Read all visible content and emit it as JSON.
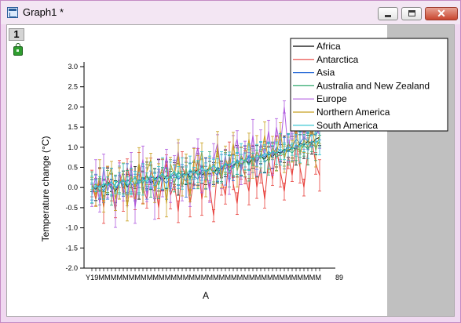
{
  "window": {
    "title": "Graph1 *"
  },
  "layer": {
    "label": "1"
  },
  "chart_data": {
    "type": "line",
    "title": "",
    "xlabel": "A",
    "ylabel": "Temperature change (°C)",
    "ylim": [
      -2.0,
      3.0
    ],
    "yticks": [
      "-2.0",
      "-1.5",
      "-1.0",
      "-0.5",
      "0.0",
      "0.5",
      "1.0",
      "1.5",
      "2.0",
      "2.5",
      "3.0"
    ],
    "xtick_first": "Y19",
    "xtick_last": "89",
    "n_points": 59,
    "error_bars": true,
    "legend_position": "top-right",
    "series": [
      {
        "name": "Africa",
        "color": "#000000",
        "values": [
          0.05,
          -0.05,
          0.1,
          0.0,
          0.15,
          0.05,
          -0.1,
          0.1,
          0.2,
          0.0,
          0.15,
          0.25,
          0.1,
          0.2,
          0.3,
          0.1,
          0.2,
          0.3,
          0.15,
          0.3,
          0.25,
          0.35,
          0.2,
          0.3,
          0.4,
          0.25,
          0.35,
          0.45,
          0.3,
          0.4,
          0.5,
          0.35,
          0.5,
          0.45,
          0.6,
          0.5,
          0.55,
          0.65,
          0.5,
          0.7,
          0.6,
          0.75,
          0.65,
          0.8,
          0.7,
          0.85,
          0.75,
          0.9,
          0.85,
          0.95,
          0.9,
          1.0,
          0.95,
          1.1,
          1.05,
          1.15,
          1.1,
          1.2,
          1.25
        ]
      },
      {
        "name": "Antarctica",
        "color": "#e8413c",
        "values": [
          0.1,
          -0.3,
          0.2,
          -0.5,
          0.3,
          0.0,
          -0.6,
          0.4,
          -0.2,
          0.5,
          0.1,
          -0.4,
          0.6,
          0.0,
          -0.3,
          0.4,
          0.2,
          -0.5,
          0.3,
          0.6,
          -0.2,
          0.1,
          -0.6,
          0.5,
          0.3,
          -0.4,
          0.2,
          0.7,
          -0.3,
          0.4,
          0.0,
          -0.7,
          0.5,
          0.2,
          -0.2,
          0.8,
          0.1,
          -0.4,
          0.6,
          0.3,
          -0.1,
          0.9,
          0.0,
          0.5,
          -0.3,
          0.7,
          0.2,
          1.0,
          0.4,
          -0.1,
          0.8,
          0.3,
          1.1,
          0.5,
          0.0,
          0.9,
          1.2,
          0.6,
          0.3
        ]
      },
      {
        "name": "Asia",
        "color": "#2e6fd8",
        "values": [
          -0.1,
          0.0,
          0.05,
          -0.1,
          0.1,
          0.0,
          -0.05,
          0.15,
          0.05,
          0.2,
          0.1,
          0.0,
          0.15,
          0.25,
          0.1,
          0.2,
          0.05,
          0.3,
          0.2,
          0.1,
          0.25,
          0.35,
          0.2,
          0.3,
          0.15,
          0.4,
          0.3,
          0.2,
          0.45,
          0.35,
          0.5,
          0.4,
          0.3,
          0.55,
          0.45,
          0.6,
          0.5,
          0.7,
          0.55,
          0.65,
          0.8,
          0.7,
          0.6,
          0.85,
          0.75,
          0.9,
          0.8,
          1.0,
          0.9,
          0.85,
          1.1,
          1.0,
          1.2,
          1.1,
          1.25,
          1.15,
          1.35,
          1.3,
          1.45
        ]
      },
      {
        "name": "Australia and New Zealand",
        "color": "#2fa86d",
        "values": [
          0.0,
          0.1,
          -0.1,
          0.05,
          0.15,
          -0.05,
          0.1,
          0.2,
          0.0,
          0.15,
          0.25,
          0.05,
          0.2,
          0.1,
          0.3,
          0.15,
          0.25,
          0.05,
          0.35,
          0.2,
          0.3,
          0.1,
          0.4,
          0.25,
          0.35,
          0.2,
          0.45,
          0.3,
          0.4,
          0.25,
          0.5,
          0.35,
          0.45,
          0.3,
          0.6,
          0.4,
          0.5,
          0.65,
          0.45,
          0.7,
          0.55,
          0.75,
          0.6,
          0.8,
          0.65,
          0.7,
          0.9,
          0.75,
          0.85,
          0.8,
          0.95,
          0.85,
          1.0,
          0.9,
          1.05,
          0.95,
          1.1,
          1.0,
          1.15
        ]
      },
      {
        "name": "Europe",
        "color": "#b05ce0",
        "values": [
          -0.2,
          0.3,
          -0.4,
          0.5,
          -0.1,
          0.2,
          -0.6,
          0.4,
          0.0,
          -0.3,
          0.6,
          -0.5,
          0.2,
          0.7,
          -0.2,
          0.3,
          -0.4,
          0.5,
          0.1,
          0.8,
          -0.1,
          0.4,
          0.9,
          0.0,
          0.5,
          -0.2,
          0.6,
          1.0,
          0.2,
          0.4,
          -0.1,
          0.7,
          1.1,
          0.3,
          0.8,
          0.1,
          0.9,
          1.2,
          0.4,
          1.0,
          0.6,
          1.3,
          0.5,
          1.1,
          0.8,
          1.4,
          0.7,
          1.5,
          1.0,
          2.0,
          0.9,
          1.6,
          1.2,
          1.8,
          1.1,
          1.7,
          1.4,
          1.5,
          1.3
        ]
      },
      {
        "name": "Northern America",
        "color": "#c8a020",
        "values": [
          0.1,
          -0.2,
          0.3,
          -0.4,
          0.2,
          0.5,
          -0.3,
          0.1,
          0.4,
          -0.5,
          0.3,
          0.0,
          0.6,
          -0.2,
          0.4,
          0.7,
          -0.1,
          0.2,
          0.5,
          -0.4,
          0.6,
          0.3,
          0.8,
          0.0,
          0.5,
          -0.2,
          0.7,
          0.4,
          0.9,
          0.1,
          0.6,
          0.3,
          1.0,
          0.2,
          0.7,
          0.5,
          1.1,
          0.4,
          0.8,
          0.6,
          1.2,
          0.5,
          0.9,
          0.7,
          1.3,
          0.6,
          1.0,
          0.8,
          1.4,
          0.7,
          1.1,
          0.9,
          1.5,
          0.8,
          1.2,
          1.0,
          1.6,
          0.9,
          1.3
        ]
      },
      {
        "name": "South America",
        "color": "#27c0cf",
        "values": [
          -0.05,
          0.05,
          0.0,
          0.1,
          0.05,
          0.15,
          0.0,
          0.1,
          0.2,
          0.05,
          0.15,
          0.25,
          0.1,
          0.2,
          0.15,
          0.3,
          0.2,
          0.25,
          0.35,
          0.2,
          0.3,
          0.4,
          0.25,
          0.35,
          0.3,
          0.45,
          0.35,
          0.4,
          0.5,
          0.4,
          0.45,
          0.55,
          0.45,
          0.5,
          0.6,
          0.55,
          0.65,
          0.6,
          0.7,
          0.65,
          0.75,
          0.7,
          0.8,
          0.75,
          0.85,
          0.8,
          0.9,
          0.85,
          0.95,
          0.9,
          1.0,
          0.95,
          1.05,
          1.0,
          1.1,
          1.05,
          1.15,
          1.1,
          1.2
        ]
      }
    ]
  }
}
